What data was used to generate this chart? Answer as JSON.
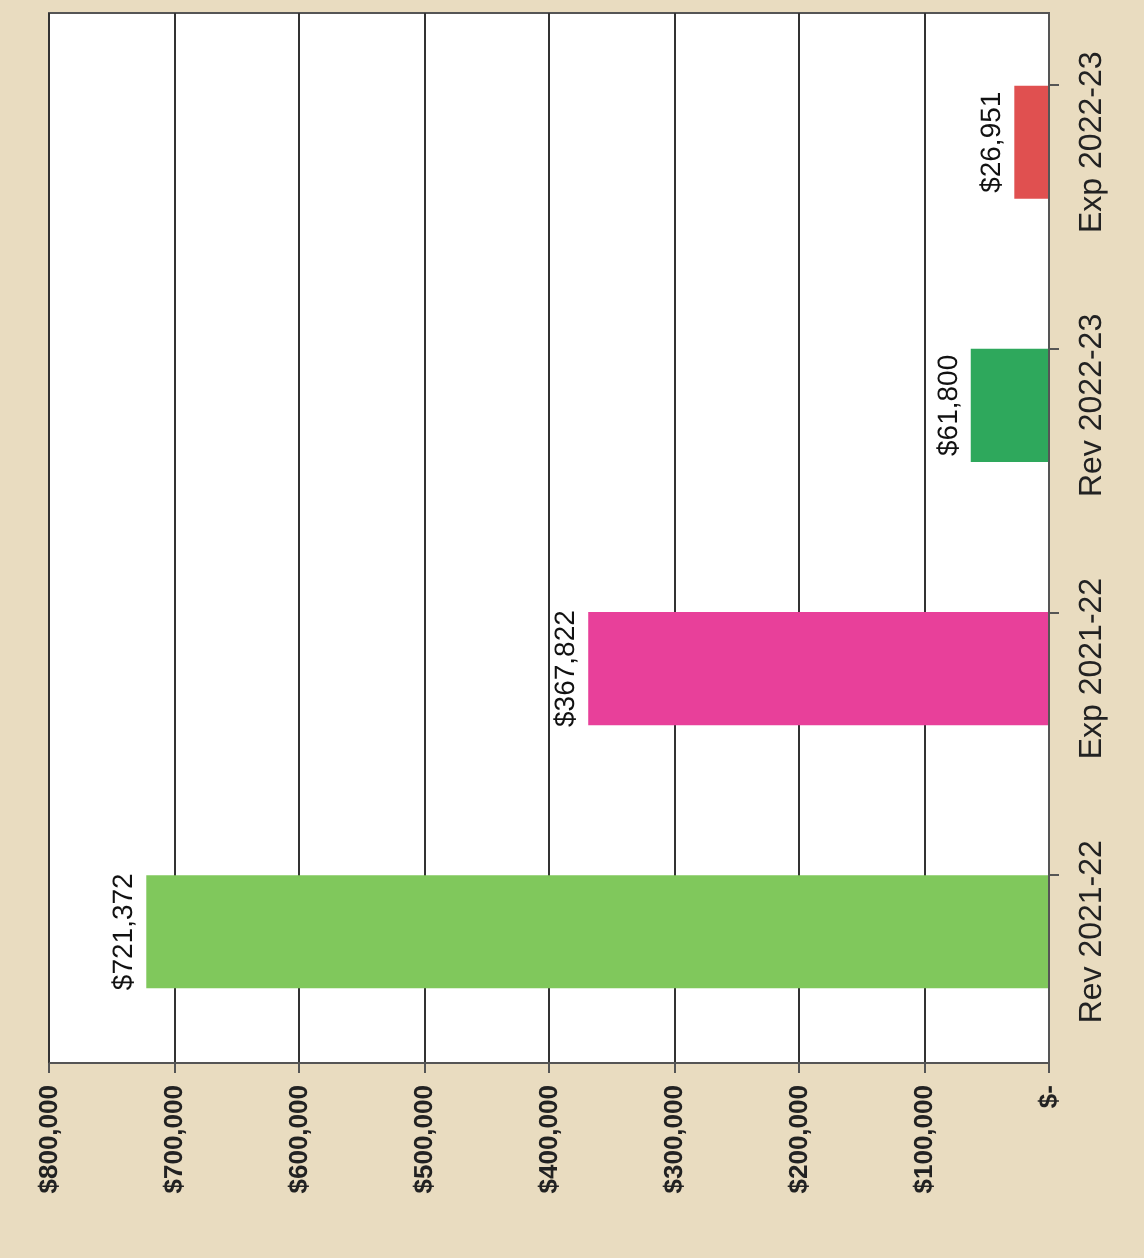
{
  "chart_data": {
    "type": "bar",
    "orientation": "horizontal",
    "categories": [
      "Exp 2022-23",
      "Rev 2022-23",
      "Exp 2021-22",
      "Rev 2021-22"
    ],
    "values": [
      26951,
      61800,
      367822,
      721372
    ],
    "colors": [
      "#e05050",
      "#2ea85c",
      "#e8409a",
      "#80c85c"
    ],
    "value_labels": [
      "$26,951",
      "$61,800",
      "$367,822",
      "$721,372"
    ],
    "xlim": [
      800000,
      0
    ],
    "xticks": [
      {
        "value": 800000,
        "label": "$800,000"
      },
      {
        "value": 700000,
        "label": "$700,000"
      },
      {
        "value": 600000,
        "label": "$600,000"
      },
      {
        "value": 500000,
        "label": "$500,000"
      },
      {
        "value": 400000,
        "label": "$400,000"
      },
      {
        "value": 300000,
        "label": "$300,000"
      },
      {
        "value": 200000,
        "label": "$200,000"
      },
      {
        "value": 100000,
        "label": "$100,000"
      },
      {
        "value": 0,
        "label": "$-"
      }
    ],
    "grid": "x"
  }
}
